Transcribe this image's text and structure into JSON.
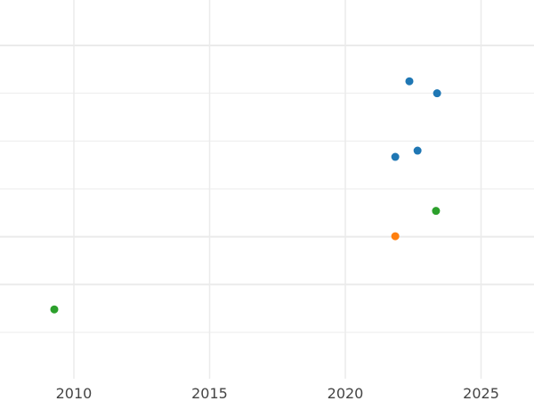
{
  "chart_data": {
    "type": "scatter",
    "title": "",
    "xlabel": "",
    "ylabel": "",
    "xlim": [
      2007.28,
      2026.95
    ],
    "ylim": [
      0.03,
      7.95
    ],
    "x_ticks": [
      2010,
      2015,
      2020,
      2025
    ],
    "x_tick_labels": [
      "2010",
      "2015",
      "2020",
      "2025"
    ],
    "y_gridlines": [
      {
        "value": 1,
        "major": false
      },
      {
        "value": 2,
        "major": true
      },
      {
        "value": 3,
        "major": true
      },
      {
        "value": 4,
        "major": false
      },
      {
        "value": 5,
        "major": false
      },
      {
        "value": 6,
        "major": false
      },
      {
        "value": 7,
        "major": true
      }
    ],
    "y_tick_labels_shown": false,
    "grid": true,
    "colors": {
      "blue": "#1f77b4",
      "orange": "#ff7f0e",
      "green": "#2ca02c",
      "grid": "#ebebeb",
      "tick_text": "#444444"
    },
    "points": [
      {
        "x": 2022.36,
        "y": 6.25,
        "color": "#1f77b4"
      },
      {
        "x": 2023.38,
        "y": 6.0,
        "color": "#1f77b4"
      },
      {
        "x": 2021.84,
        "y": 4.67,
        "color": "#1f77b4"
      },
      {
        "x": 2022.66,
        "y": 4.8,
        "color": "#1f77b4"
      },
      {
        "x": 2023.34,
        "y": 3.54,
        "color": "#2ca02c"
      },
      {
        "x": 2021.84,
        "y": 3.01,
        "color": "#ff7f0e"
      },
      {
        "x": 2009.28,
        "y": 1.48,
        "color": "#2ca02c"
      }
    ]
  }
}
